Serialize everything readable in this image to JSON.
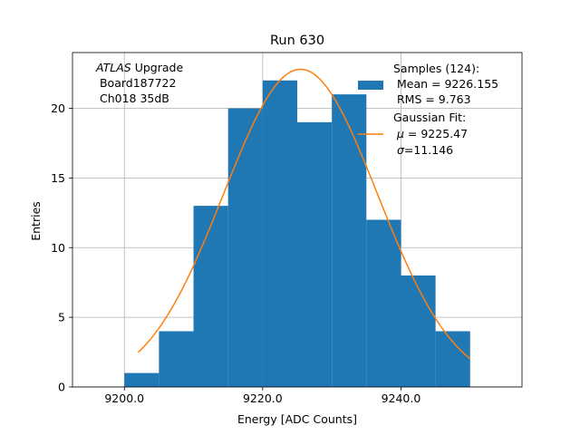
{
  "chart_data": {
    "type": "bar",
    "title": "Run 630",
    "xlabel": "Energy [ADC Counts]",
    "ylabel": "Entries",
    "xlim": [
      9192.5,
      9257.5
    ],
    "ylim": [
      0,
      24
    ],
    "xticks": [
      9200.0,
      9220.0,
      9240.0
    ],
    "xtick_labels": [
      "9200.0",
      "9220.0",
      "9240.0"
    ],
    "yticks": [
      0,
      5,
      10,
      15,
      20
    ],
    "ytick_labels": [
      "0",
      "5",
      "10",
      "15",
      "20"
    ],
    "grid": true,
    "bins": [
      {
        "x0": 9200,
        "x1": 9205,
        "count": 1
      },
      {
        "x0": 9205,
        "x1": 9210,
        "count": 4
      },
      {
        "x0": 9210,
        "x1": 9215,
        "count": 13
      },
      {
        "x0": 9215,
        "x1": 9220,
        "count": 20
      },
      {
        "x0": 9220,
        "x1": 9225,
        "count": 22
      },
      {
        "x0": 9225,
        "x1": 9230,
        "count": 19
      },
      {
        "x0": 9230,
        "x1": 9235,
        "count": 21
      },
      {
        "x0": 9235,
        "x1": 9240,
        "count": 12
      },
      {
        "x0": 9240,
        "x1": 9245,
        "count": 8
      },
      {
        "x0": 9245,
        "x1": 9250,
        "count": 4
      }
    ],
    "fit": {
      "type": "gaussian",
      "amplitude": 22.8,
      "mu": 9225.47,
      "sigma": 11.146,
      "x_range": [
        9202,
        9250
      ]
    },
    "colors": {
      "bars": "#1f77b4",
      "fit": "#ff7f0e",
      "grid": "#b0b0b0"
    },
    "annotation": {
      "line1_italic": "ATLAS",
      "line1_rest": " Upgrade",
      "line2": " Board187722",
      "line3": " Ch018 35dB"
    },
    "legend": {
      "position": "top-right",
      "samples": {
        "line1": "Samples (124):",
        "line2": " Mean = 9226.155",
        "line3": " RMS = 9.763"
      },
      "fit": {
        "line1": "Gaussian Fit:",
        "line2_symbol": "μ",
        "line2_rest": " = 9225.47",
        "line3_symbol": "σ",
        "line3_rest": "=11.146"
      }
    }
  }
}
